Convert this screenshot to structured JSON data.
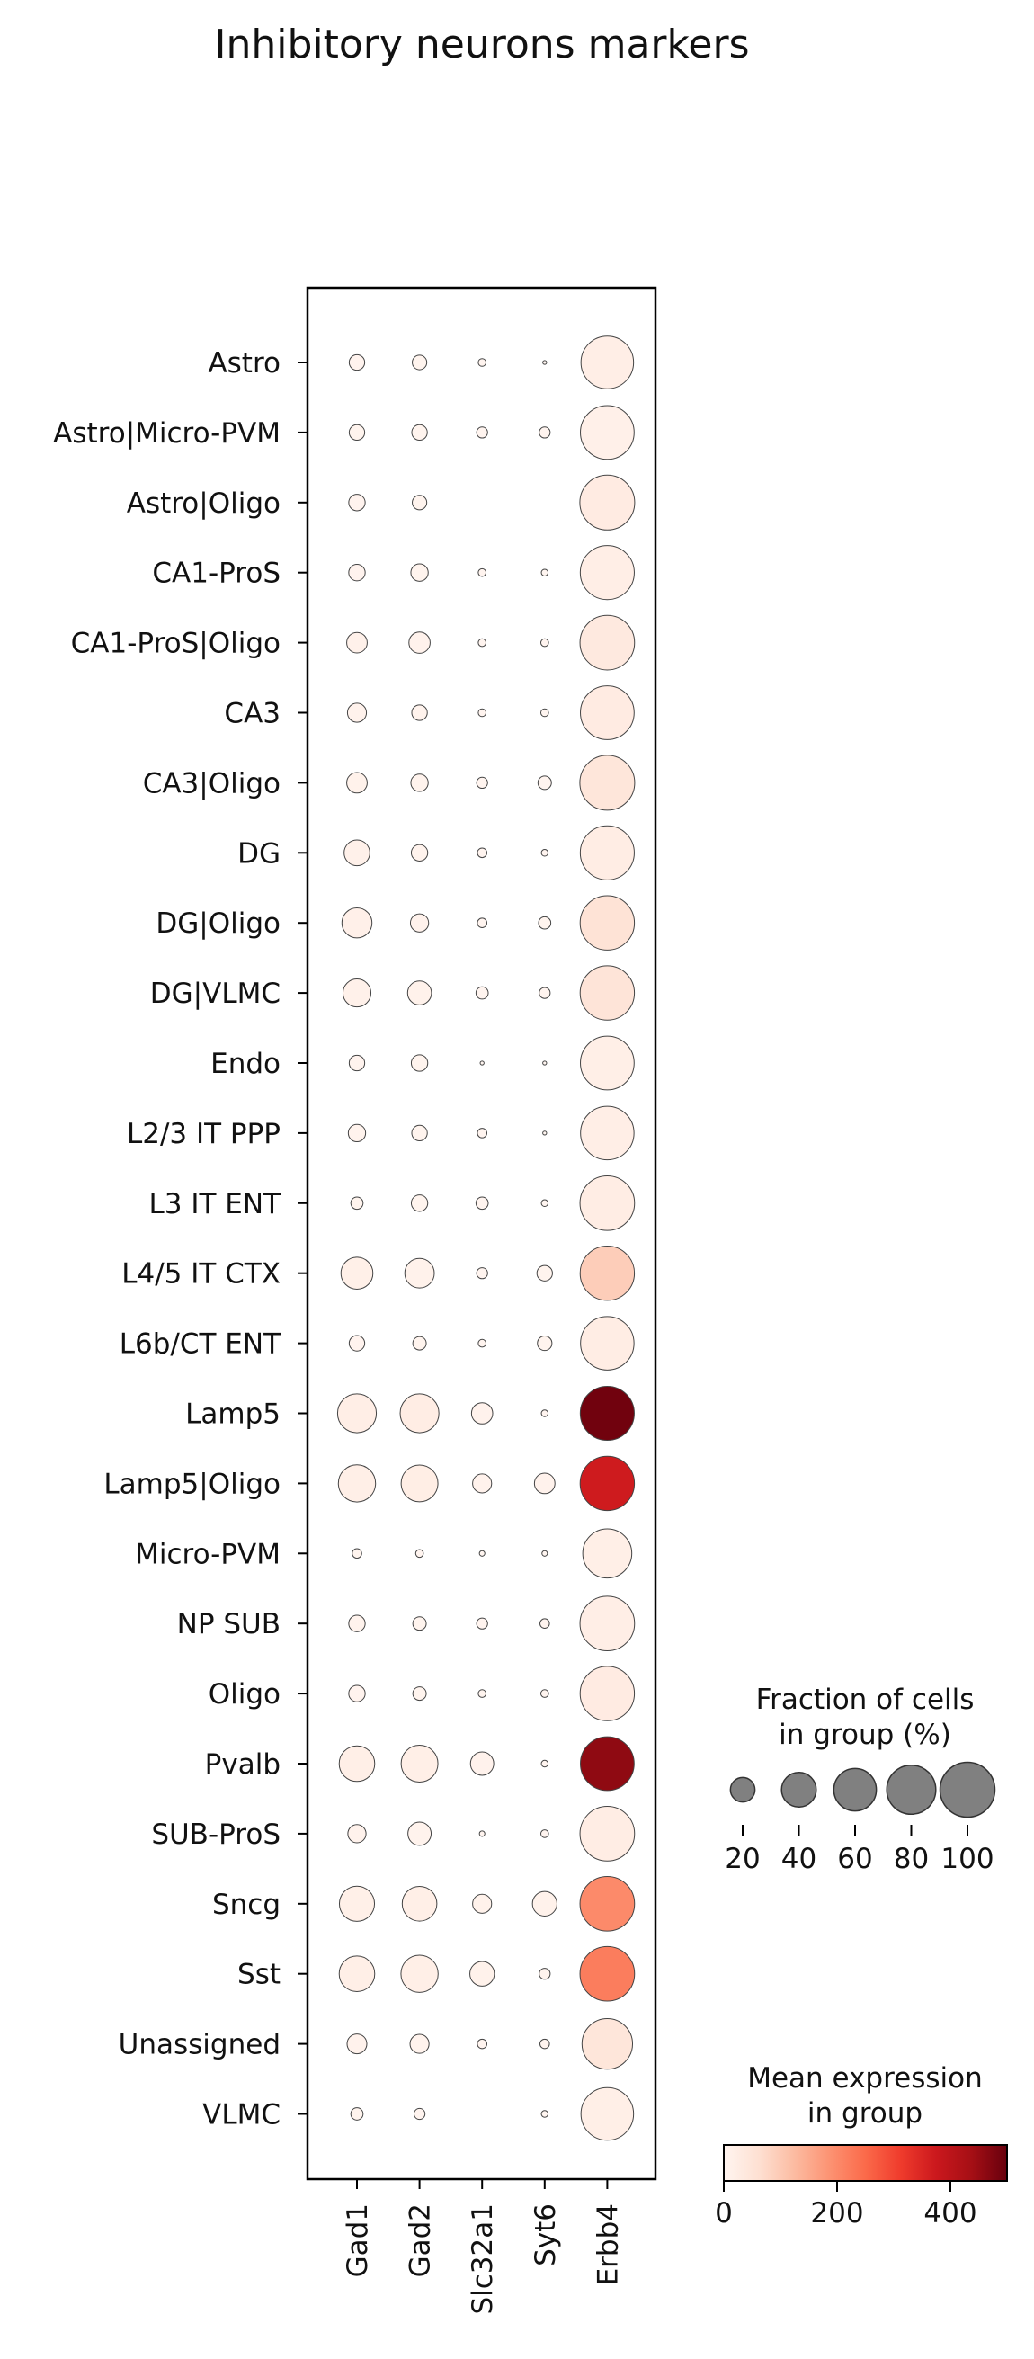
{
  "chart_data": {
    "type": "dotplot",
    "title": "Inhibitory neurons markers",
    "genes": [
      "Gad1",
      "Gad2",
      "Slc32a1",
      "Syt6",
      "Erbb4"
    ],
    "groups": [
      "Astro",
      "Astro|Micro-PVM",
      "Astro|Oligo",
      "CA1-ProS",
      "CA1-ProS|Oligo",
      "CA3",
      "CA3|Oligo",
      "DG",
      "DG|Oligo",
      "DG|VLMC",
      "Endo",
      "L2/3 IT PPP",
      "L3 IT ENT",
      "L4/5 IT CTX",
      "L6b/CT ENT",
      "Lamp5",
      "Lamp5|Oligo",
      "Micro-PVM",
      "NP SUB",
      "Oligo",
      "Pvalb",
      "SUB-ProS",
      "Sncg",
      "Sst",
      "Unassigned",
      "VLMC"
    ],
    "fraction_pct": [
      [
        8,
        7,
        2,
        0.5,
        92
      ],
      [
        8,
        8,
        4,
        4,
        96
      ],
      [
        9,
        7,
        0,
        0,
        100
      ],
      [
        9,
        10,
        2,
        1.5,
        97
      ],
      [
        14,
        15,
        2,
        2,
        99
      ],
      [
        12,
        8,
        2,
        2,
        96
      ],
      [
        14,
        10,
        4,
        6,
        100
      ],
      [
        22,
        9,
        3,
        1.5,
        97
      ],
      [
        30,
        11,
        3,
        5,
        98
      ],
      [
        26,
        19,
        5,
        4,
        98
      ],
      [
        8,
        9,
        0.5,
        0.5,
        96
      ],
      [
        10,
        8,
        3,
        0.5,
        95
      ],
      [
        5,
        9,
        5,
        1.5,
        99
      ],
      [
        34,
        29,
        4,
        8,
        98
      ],
      [
        8,
        6,
        2,
        7,
        95
      ],
      [
        50,
        50,
        15,
        1.5,
        97
      ],
      [
        46,
        45,
        12,
        14,
        98
      ],
      [
        3,
        2,
        1,
        1,
        80
      ],
      [
        9,
        6,
        4,
        3,
        99
      ],
      [
        9,
        6,
        2,
        2,
        98
      ],
      [
        42,
        45,
        18,
        1.5,
        96
      ],
      [
        11,
        18,
        1,
        2,
        99
      ],
      [
        41,
        40,
        12,
        20,
        99
      ],
      [
        42,
        46,
        20,
        4,
        99
      ],
      [
        13,
        12,
        3,
        3,
        85
      ],
      [
        5,
        4,
        0,
        1.5,
        92
      ]
    ],
    "mean_expression": [
      [
        5,
        4,
        2,
        1,
        20
      ],
      [
        4,
        4,
        2,
        2,
        15
      ],
      [
        5,
        4,
        0,
        0,
        30
      ],
      [
        5,
        4,
        2,
        1,
        20
      ],
      [
        12,
        8,
        2,
        2,
        35
      ],
      [
        8,
        6,
        2,
        1,
        30
      ],
      [
        10,
        6,
        2,
        2,
        45
      ],
      [
        12,
        6,
        2,
        2,
        25
      ],
      [
        14,
        8,
        2,
        4,
        55
      ],
      [
        12,
        10,
        2,
        2,
        50
      ],
      [
        5,
        4,
        1,
        1,
        18
      ],
      [
        6,
        4,
        2,
        1,
        20
      ],
      [
        4,
        4,
        2,
        1,
        25
      ],
      [
        16,
        10,
        2,
        4,
        95
      ],
      [
        5,
        4,
        2,
        4,
        25
      ],
      [
        20,
        25,
        8,
        2,
        490
      ],
      [
        18,
        22,
        8,
        8,
        370
      ],
      [
        4,
        2,
        1,
        1,
        18
      ],
      [
        6,
        4,
        2,
        2,
        20
      ],
      [
        5,
        4,
        2,
        2,
        30
      ],
      [
        18,
        18,
        8,
        2,
        460
      ],
      [
        8,
        6,
        2,
        2,
        25
      ],
      [
        16,
        18,
        10,
        10,
        200
      ],
      [
        18,
        18,
        10,
        4,
        220
      ],
      [
        8,
        6,
        2,
        2,
        45
      ],
      [
        4,
        3,
        0,
        1,
        18
      ]
    ],
    "size_legend": {
      "title_line1": "Fraction of cells",
      "title_line2": "in group (%)",
      "values": [
        20,
        40,
        60,
        80,
        100
      ],
      "labels": [
        "20",
        "40",
        "60",
        "80",
        "100"
      ]
    },
    "color_legend": {
      "title_line1": "Mean expression",
      "title_line2": "in group",
      "vmin": 0,
      "vmax": 500,
      "ticks": [
        0,
        200,
        400
      ],
      "tick_labels": [
        "0",
        "200",
        "400"
      ],
      "colormap": "Reds",
      "colors": [
        "#fff5f0",
        "#fee0d2",
        "#fcbba1",
        "#fc9272",
        "#fb6a4a",
        "#ef3b2c",
        "#cb181d",
        "#a50f15",
        "#67000d"
      ]
    },
    "grid": false
  }
}
